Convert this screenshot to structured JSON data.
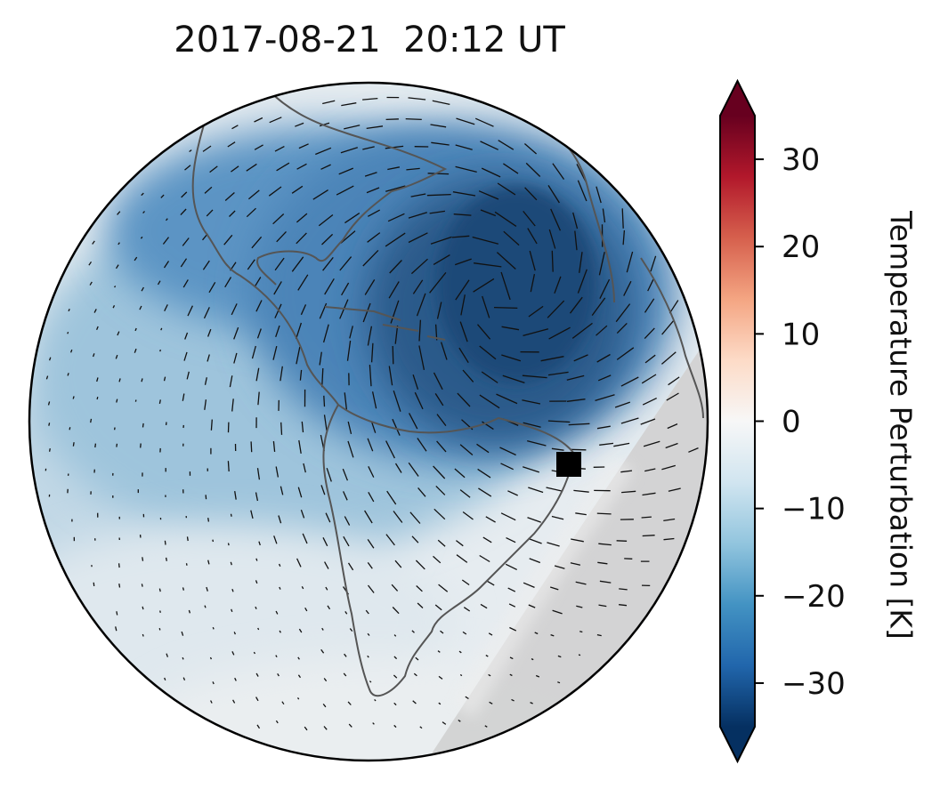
{
  "title": "2017-08-21  20:12 UT",
  "colorbar": {
    "label": "Temperature Perturbation [K]",
    "min": -35,
    "max": 35,
    "ticks": [
      30,
      20,
      10,
      0,
      -10,
      -20,
      -30
    ],
    "tick_labels": [
      "30",
      "20",
      "10",
      "0",
      "−10",
      "−20",
      "−30"
    ],
    "extend": "both",
    "colormap": "RdBu_r",
    "colors": [
      "#053061",
      "#2166ac",
      "#4393c3",
      "#92c5de",
      "#d1e5f0",
      "#f7f7f7",
      "#fddbc7",
      "#f4a582",
      "#d6604d",
      "#b2182b",
      "#67001f"
    ]
  },
  "map": {
    "projection": "orthographic",
    "region": "Americas and Atlantic",
    "marker": {
      "shape": "square",
      "color": "#000000"
    },
    "coastline_color": "#555555",
    "night_shade_color": "#cfcfcf"
  }
}
